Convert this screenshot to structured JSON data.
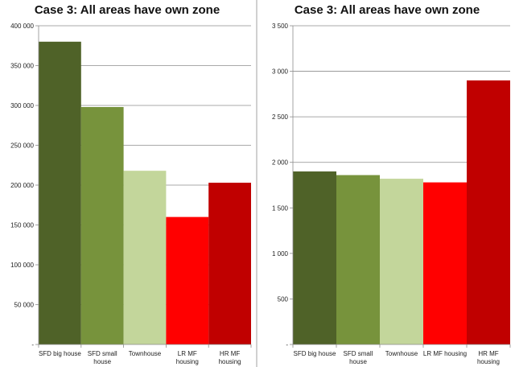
{
  "chart_data": [
    {
      "type": "bar",
      "title": "Case 3: All areas have own zone",
      "categories": [
        "SFD big house",
        "SFD small house",
        "Townhouse",
        "LR MF housing",
        "HR MF housing"
      ],
      "category_lines": [
        [
          "SFD big house"
        ],
        [
          "SFD small",
          "house"
        ],
        [
          "Townhouse"
        ],
        [
          "LR MF",
          "housing"
        ],
        [
          "HR MF",
          "housing"
        ]
      ],
      "values": [
        380000,
        298000,
        218000,
        160000,
        203000
      ],
      "ylim": [
        0,
        400000
      ],
      "yticks": [
        0,
        50000,
        100000,
        150000,
        200000,
        250000,
        300000,
        350000,
        400000
      ],
      "ytick_labels": [
        "-",
        "50 000",
        "100 000",
        "150 000",
        "200 000",
        "250 000",
        "300 000",
        "350 000",
        "400 000"
      ],
      "colors": [
        "#4f6228",
        "#77933c",
        "#c3d69b",
        "#ff0000",
        "#c00000"
      ],
      "grid": true,
      "xlabel": "",
      "ylabel": ""
    },
    {
      "type": "bar",
      "title": "Case 3: All areas have own zone",
      "categories": [
        "SFD big house",
        "SFD small house",
        "Townhouse",
        "LR MF housing",
        "HR MF housing"
      ],
      "category_lines": [
        [
          "SFD big house"
        ],
        [
          "SFD small",
          "house"
        ],
        [
          "Townhouse"
        ],
        [
          "LR MF housing"
        ],
        [
          "HR MF",
          "housing"
        ]
      ],
      "values": [
        1900,
        1860,
        1820,
        1780,
        2900
      ],
      "ylim": [
        0,
        3500
      ],
      "yticks": [
        0,
        500,
        1000,
        1500,
        2000,
        2500,
        3000,
        3500
      ],
      "ytick_labels": [
        "-",
        "500",
        "1 000",
        "1 500",
        "2 000",
        "2 500",
        "3 000",
        "3 500"
      ],
      "colors": [
        "#4f6228",
        "#77933c",
        "#c3d69b",
        "#ff0000",
        "#c00000"
      ],
      "grid": true,
      "xlabel": "",
      "ylabel": ""
    }
  ]
}
